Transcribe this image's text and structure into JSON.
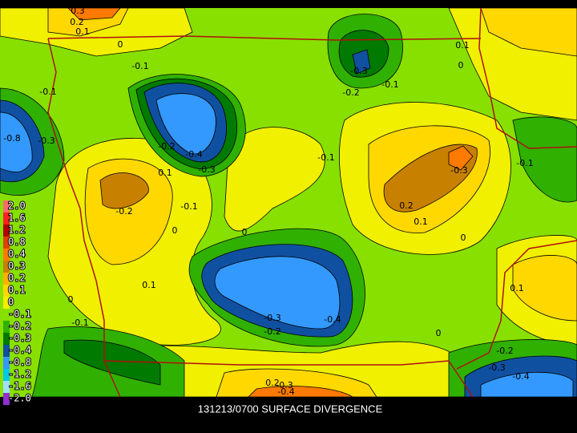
{
  "map": {
    "title": "131213/0700 SURFACE DIVERGENCE",
    "legend": [
      {
        "label": "2.0",
        "color": "#ff6a6a"
      },
      {
        "label": "1.6",
        "color": "#ff2020"
      },
      {
        "label": "1.2",
        "color": "#b00000"
      },
      {
        "label": "0.8",
        "color": "#e04000"
      },
      {
        "label": "0.4",
        "color": "#ff7a00"
      },
      {
        "label": "0.3",
        "color": "#c88000"
      },
      {
        "label": "0.2",
        "color": "#ffb000"
      },
      {
        "label": "0.1",
        "color": "#ffd800"
      },
      {
        "label": "0",
        "color": "#f0f000"
      },
      {
        "label": "-0.1",
        "color": "#88e000"
      },
      {
        "label": "-0.2",
        "color": "#30b000"
      },
      {
        "label": "-0.3",
        "color": "#007a00"
      },
      {
        "label": "-0.4",
        "color": "#1050a0"
      },
      {
        "label": "-0.8",
        "color": "#3399ff"
      },
      {
        "label": "-1.2",
        "color": "#00c8e8"
      },
      {
        "label": "-1.6",
        "color": "#a0e0ff"
      },
      {
        "label": "-2.0",
        "color": "#9030d0"
      }
    ],
    "contour_labels": [
      "0.3",
      "0.2",
      "0.1",
      "0",
      "-0.1",
      "-0.1",
      "-0.8",
      "-0.3",
      "-0.2",
      "-0.4",
      "-0.3",
      "0.1",
      "-0.1",
      "-0.2",
      "0",
      "-0.3",
      "-0.2",
      "-0.1",
      "0.1",
      "0",
      "-0.1",
      "-0.3",
      "0.2",
      "0.1",
      "0",
      "-0.1",
      "0.1",
      "0",
      "-0.1",
      "-0.3",
      "-0.2",
      "-0.4",
      "0",
      "0.1",
      "-0.2",
      "-0.3",
      "-0.4",
      "0.2",
      "-0.3",
      "-0.4",
      "0"
    ]
  }
}
